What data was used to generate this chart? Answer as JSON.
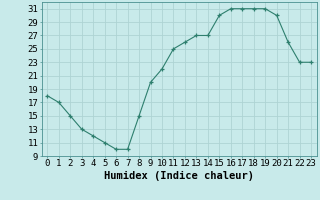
{
  "x": [
    0,
    1,
    2,
    3,
    4,
    5,
    6,
    7,
    8,
    9,
    10,
    11,
    12,
    13,
    14,
    15,
    16,
    17,
    18,
    19,
    20,
    21,
    22,
    23
  ],
  "y": [
    18,
    17,
    15,
    13,
    12,
    11,
    10,
    10,
    15,
    20,
    22,
    25,
    26,
    27,
    27,
    30,
    31,
    31,
    31,
    31,
    30,
    26,
    23,
    23
  ],
  "xlabel": "Humidex (Indice chaleur)",
  "ylim": [
    9,
    32
  ],
  "xlim": [
    -0.5,
    23.5
  ],
  "yticks": [
    9,
    11,
    13,
    15,
    17,
    19,
    21,
    23,
    25,
    27,
    29,
    31
  ],
  "xticks": [
    0,
    1,
    2,
    3,
    4,
    5,
    6,
    7,
    8,
    9,
    10,
    11,
    12,
    13,
    14,
    15,
    16,
    17,
    18,
    19,
    20,
    21,
    22,
    23
  ],
  "xtick_labels": [
    "0",
    "1",
    "2",
    "3",
    "4",
    "5",
    "6",
    "7",
    "8",
    "9",
    "10",
    "11",
    "12",
    "13",
    "14",
    "15",
    "16",
    "17",
    "18",
    "19",
    "20",
    "21",
    "22",
    "23"
  ],
  "line_color": "#2e7f6e",
  "marker": "+",
  "bg_color": "#c8eaea",
  "grid_color": "#aed4d4",
  "xlabel_fontsize": 7.5,
  "tick_fontsize": 6.5
}
